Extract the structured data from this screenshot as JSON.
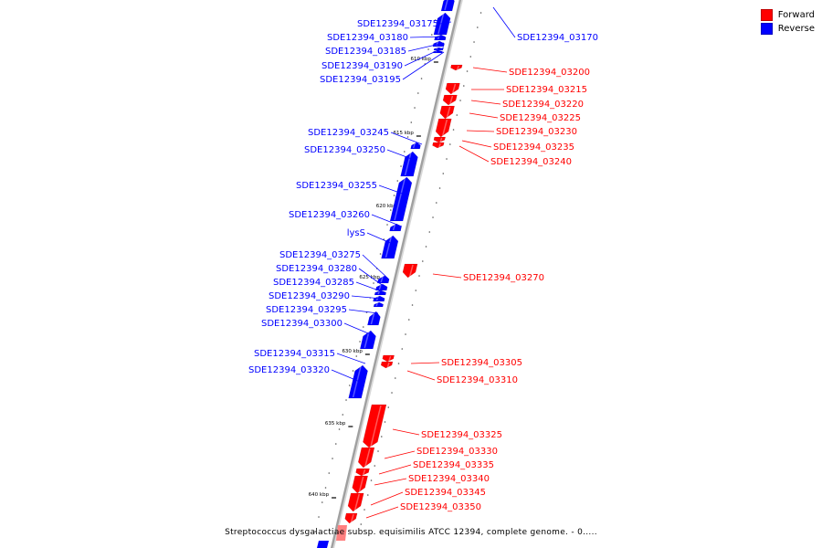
{
  "colors": {
    "forward": "#ff0000",
    "reverse": "#0000ff",
    "backbone": "#a0a0a0"
  },
  "legend": [
    {
      "label": "Forward",
      "color": "#ff0000"
    },
    {
      "label": "Reverse",
      "color": "#0000ff"
    }
  ],
  "caption": "Streptococcus dysgalactiae subsp. equisimilis ATCC 12394, complete genome. - 0.....",
  "scale_ticks": [
    "610 kbp",
    "615 kbp",
    "620 kbp",
    "625 kbp",
    "630 kbp",
    "635 kbp",
    "640 kbp"
  ],
  "genes": [
    {
      "label": "SDE12394_03170",
      "strand": "reverse"
    },
    {
      "label": "SDE12394_03175",
      "strand": "reverse"
    },
    {
      "label": "SDE12394_03180",
      "strand": "reverse"
    },
    {
      "label": "SDE12394_03185",
      "strand": "reverse"
    },
    {
      "label": "SDE12394_03190",
      "strand": "reverse"
    },
    {
      "label": "SDE12394_03195",
      "strand": "reverse"
    },
    {
      "label": "SDE12394_03200",
      "strand": "forward"
    },
    {
      "label": "SDE12394_03215",
      "strand": "forward"
    },
    {
      "label": "SDE12394_03220",
      "strand": "forward"
    },
    {
      "label": "SDE12394_03225",
      "strand": "forward"
    },
    {
      "label": "SDE12394_03230",
      "strand": "forward"
    },
    {
      "label": "SDE12394_03235",
      "strand": "forward"
    },
    {
      "label": "SDE12394_03240",
      "strand": "forward"
    },
    {
      "label": "SDE12394_03245",
      "strand": "reverse"
    },
    {
      "label": "SDE12394_03250",
      "strand": "reverse"
    },
    {
      "label": "SDE12394_03255",
      "strand": "reverse"
    },
    {
      "label": "SDE12394_03260",
      "strand": "reverse"
    },
    {
      "label": "lysS",
      "strand": "reverse"
    },
    {
      "label": "SDE12394_03270",
      "strand": "forward"
    },
    {
      "label": "SDE12394_03275",
      "strand": "reverse"
    },
    {
      "label": "SDE12394_03280",
      "strand": "reverse"
    },
    {
      "label": "SDE12394_03285",
      "strand": "reverse"
    },
    {
      "label": "SDE12394_03290",
      "strand": "reverse"
    },
    {
      "label": "SDE12394_03295",
      "strand": "reverse"
    },
    {
      "label": "SDE12394_03300",
      "strand": "reverse"
    },
    {
      "label": "SDE12394_03305",
      "strand": "forward"
    },
    {
      "label": "SDE12394_03310",
      "strand": "forward"
    },
    {
      "label": "SDE12394_03315",
      "strand": "reverse"
    },
    {
      "label": "SDE12394_03320",
      "strand": "reverse"
    },
    {
      "label": "SDE12394_03325",
      "strand": "forward"
    },
    {
      "label": "SDE12394_03330",
      "strand": "forward"
    },
    {
      "label": "SDE12394_03335",
      "strand": "forward"
    },
    {
      "label": "SDE12394_03340",
      "strand": "forward"
    },
    {
      "label": "SDE12394_03345",
      "strand": "forward"
    },
    {
      "label": "SDE12394_03350",
      "strand": "forward"
    }
  ]
}
